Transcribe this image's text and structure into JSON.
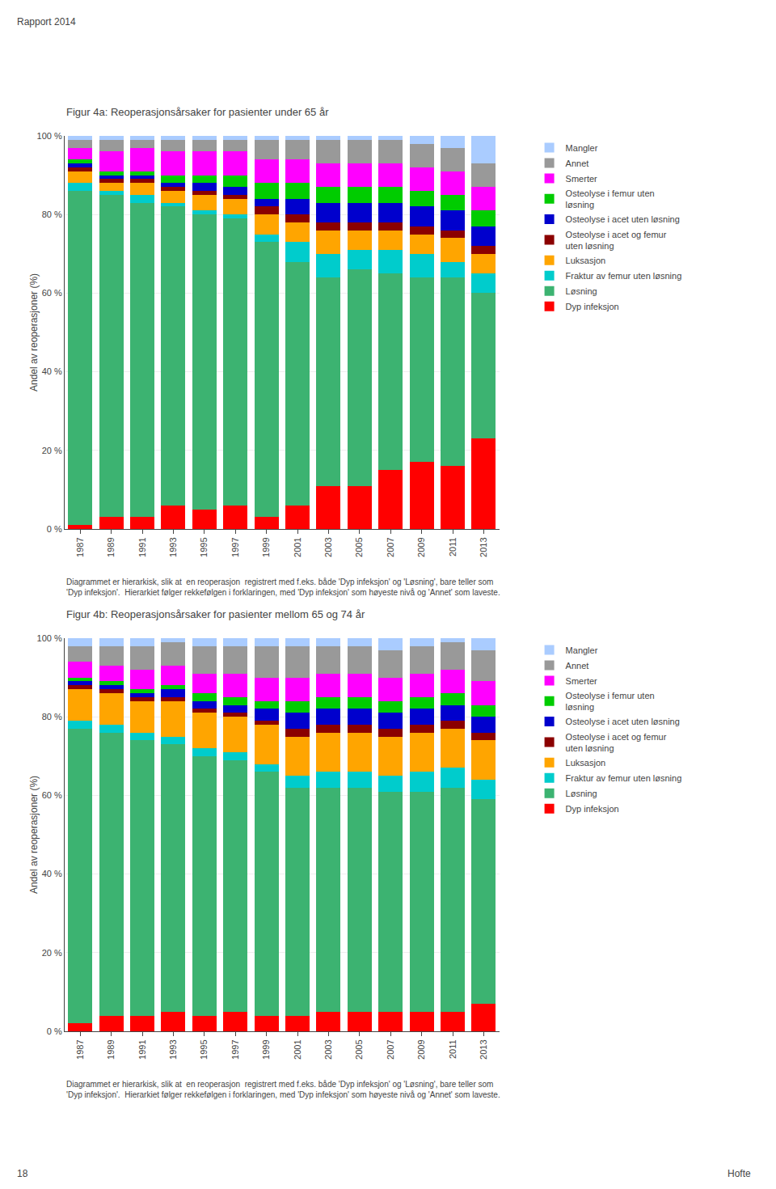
{
  "chart_data": [
    {
      "type": "bar",
      "title": "Figur 4a: Reoperasjonsårsaker for pasienter under 65 år",
      "y_label": "Andel av reoperasjoner (%)",
      "categories": [
        "1987",
        "1989",
        "1991",
        "1993",
        "1995",
        "1997",
        "1999",
        "2001",
        "2003",
        "2005",
        "2007",
        "2009",
        "2011",
        "2013"
      ],
      "series": [
        {
          "name": "Dyp infeksjon",
          "color": "#FF0000",
          "values": [
            1,
            3,
            3,
            6,
            5,
            6,
            3,
            6,
            11,
            11,
            15,
            17,
            16,
            23
          ]
        },
        {
          "name": "Løsning",
          "color": "#3CB371",
          "values": [
            85,
            82,
            80,
            76,
            75,
            73,
            70,
            62,
            53,
            55,
            50,
            47,
            48,
            37
          ]
        },
        {
          "name": "Fraktur av femur uten løsning",
          "color": "#00CCCC",
          "values": [
            2,
            1,
            2,
            1,
            1,
            1,
            2,
            5,
            6,
            5,
            6,
            6,
            4,
            5
          ]
        },
        {
          "name": "Luksasjon",
          "color": "#FFA500",
          "values": [
            3,
            2,
            3,
            3,
            4,
            4,
            5,
            5,
            6,
            5,
            5,
            5,
            6,
            5
          ]
        },
        {
          "name": "Osteolyse i acet og femur\nuten løsning",
          "color": "#8B0000",
          "values": [
            1,
            1,
            1,
            1,
            1,
            1,
            2,
            2,
            2,
            2,
            2,
            2,
            2,
            2
          ]
        },
        {
          "name": "Osteolyse i acet uten løsning",
          "color": "#0000CD",
          "values": [
            1,
            1,
            1,
            1,
            2,
            2,
            2,
            4,
            5,
            5,
            5,
            5,
            5,
            5
          ]
        },
        {
          "name": "Osteolyse i femur uten\nløsning",
          "color": "#00CC00",
          "values": [
            1,
            1,
            1,
            2,
            2,
            3,
            4,
            4,
            4,
            4,
            4,
            4,
            4,
            4
          ]
        },
        {
          "name": "Smerter",
          "color": "#FF00FF",
          "values": [
            3,
            5,
            6,
            6,
            6,
            6,
            6,
            6,
            6,
            6,
            6,
            6,
            6,
            6
          ]
        },
        {
          "name": "Annet",
          "color": "#999999",
          "values": [
            2,
            3,
            2,
            3,
            3,
            3,
            5,
            5,
            6,
            6,
            6,
            6,
            6,
            6
          ]
        },
        {
          "name": "Mangler",
          "color": "#AACCFF",
          "values": [
            1,
            1,
            1,
            1,
            1,
            1,
            1,
            1,
            1,
            1,
            1,
            2,
            3,
            7
          ]
        }
      ],
      "ylim": [
        0,
        100
      ],
      "yticks": [
        {
          "value": 0,
          "label": "0 %"
        },
        {
          "value": 20,
          "label": "20 %"
        },
        {
          "value": 40,
          "label": "40 %"
        },
        {
          "value": 60,
          "label": "60 %"
        },
        {
          "value": 80,
          "label": "80 %"
        },
        {
          "value": 100,
          "label": "100 %"
        }
      ],
      "grid": true,
      "stacked": true,
      "legend": "right",
      "annotations": [
        "Rapport 2014",
        "Diagrammet er hierarkisk, slik at  en reoperasjon  registrert med f.eks. både 'Dyp infeksjon' og 'Løsning', bare teller som\n'Dyp infeksjon'.  Hierarkiet følger rekkefølgen i forklaringen, med 'Dyp infeksjon' som høyeste nivå og 'Annet' som laveste."
      ]
    },
    {
      "type": "bar",
      "title": "Figur 4b: Reoperasjonsårsaker for pasienter mellom 65 og 74 år",
      "y_label": "Andel av reoperasjoner (%)",
      "categories": [
        "1987",
        "1989",
        "1991",
        "1993",
        "1995",
        "1997",
        "1999",
        "2001",
        "2003",
        "2005",
        "2007",
        "2009",
        "2011",
        "2013"
      ],
      "series": [
        {
          "name": "Dyp infeksjon",
          "color": "#FF0000",
          "values": [
            2,
            4,
            4,
            5,
            4,
            5,
            4,
            4,
            5,
            5,
            5,
            5,
            5,
            7
          ]
        },
        {
          "name": "Løsning",
          "color": "#3CB371",
          "values": [
            75,
            72,
            70,
            68,
            66,
            64,
            62,
            58,
            57,
            57,
            56,
            56,
            57,
            52
          ]
        },
        {
          "name": "Fraktur av femur uten løsning",
          "color": "#00CCCC",
          "values": [
            2,
            2,
            2,
            2,
            2,
            2,
            2,
            3,
            4,
            4,
            4,
            5,
            5,
            5
          ]
        },
        {
          "name": "Luksasjon",
          "color": "#FFA500",
          "values": [
            8,
            8,
            8,
            9,
            9,
            9,
            10,
            10,
            10,
            10,
            10,
            10,
            10,
            10
          ]
        },
        {
          "name": "Osteolyse i acet og femur\nuten løsning",
          "color": "#8B0000",
          "values": [
            1,
            1,
            1,
            1,
            1,
            1,
            1,
            2,
            2,
            2,
            2,
            2,
            2,
            2
          ]
        },
        {
          "name": "Osteolyse i acet uten løsning",
          "color": "#0000CD",
          "values": [
            1,
            1,
            1,
            2,
            2,
            2,
            3,
            4,
            4,
            4,
            4,
            4,
            4,
            4
          ]
        },
        {
          "name": "Osteolyse i femur uten\nløsning",
          "color": "#00CC00",
          "values": [
            1,
            1,
            1,
            1,
            2,
            2,
            2,
            3,
            3,
            3,
            3,
            3,
            3,
            3
          ]
        },
        {
          "name": "Smerter",
          "color": "#FF00FF",
          "values": [
            4,
            4,
            5,
            5,
            5,
            6,
            6,
            6,
            6,
            6,
            6,
            6,
            6,
            6
          ]
        },
        {
          "name": "Annet",
          "color": "#999999",
          "values": [
            4,
            5,
            6,
            6,
            7,
            7,
            8,
            8,
            7,
            7,
            7,
            7,
            7,
            8
          ]
        },
        {
          "name": "Mangler",
          "color": "#AACCFF",
          "values": [
            2,
            2,
            2,
            1,
            2,
            2,
            2,
            2,
            2,
            2,
            3,
            2,
            1,
            3
          ]
        }
      ],
      "ylim": [
        0,
        100
      ],
      "yticks": [
        {
          "value": 0,
          "label": "0 %"
        },
        {
          "value": 20,
          "label": "20 %"
        },
        {
          "value": 40,
          "label": "40 %"
        },
        {
          "value": 60,
          "label": "60 %"
        },
        {
          "value": 80,
          "label": "80 %"
        },
        {
          "value": 100,
          "label": "100 %"
        }
      ],
      "grid": true,
      "stacked": true,
      "legend": "right",
      "annotations": [
        "Diagrammet er hierarkisk, slik at  en reoperasjon  registrert med f.eks. både 'Dyp infeksjon' og 'Løsning', bare teller som\n'Dyp infeksjon'.  Hierarkiet følger rekkefølgen i forklaringen, med 'Dyp infeksjon' som høyeste nivå og 'Annet' som laveste.",
        "18",
        "Hofte"
      ]
    }
  ]
}
